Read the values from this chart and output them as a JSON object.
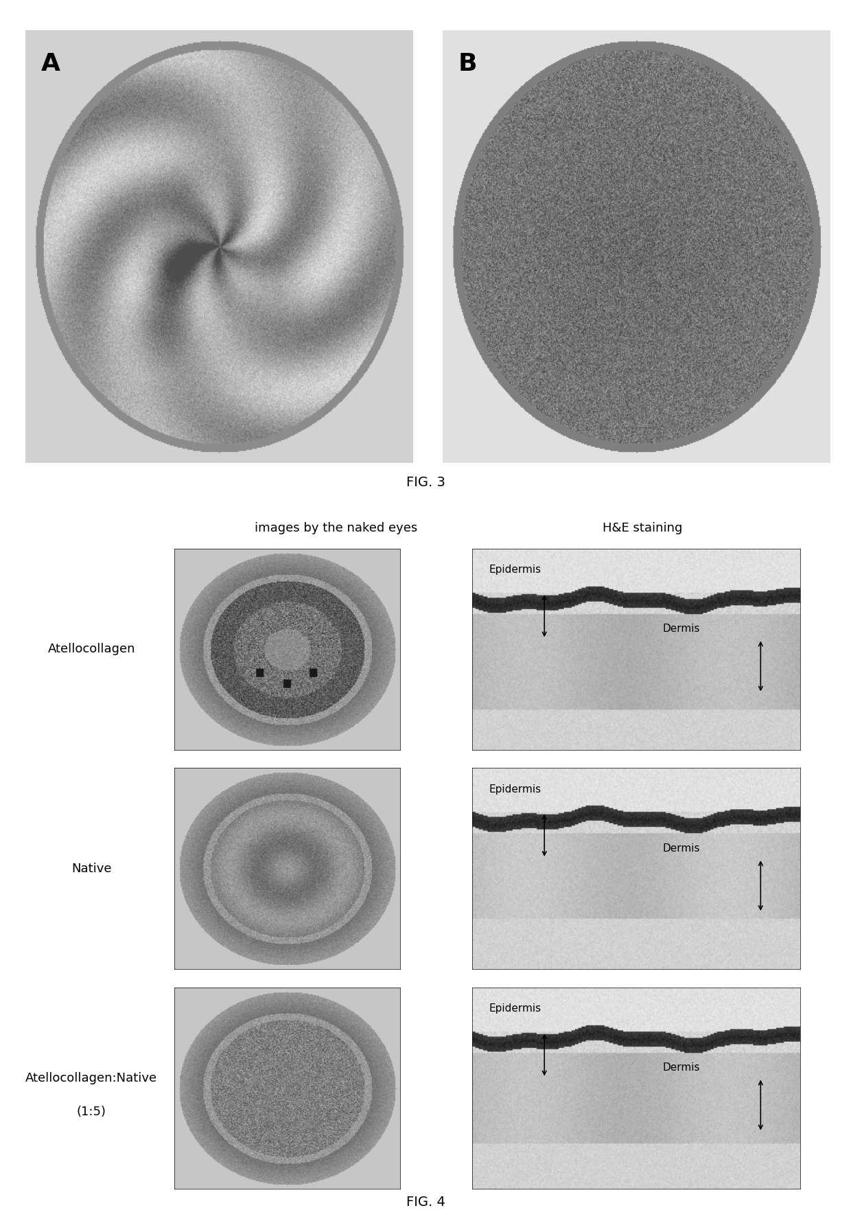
{
  "fig3_label": "FIG. 3",
  "fig4_label": "FIG. 4",
  "col1_header": "images by the naked eyes",
  "col2_header": "H&E staining",
  "row_labels": [
    "Atellocollagen",
    "Native",
    "Atellocollagen:Native\n(1:5)"
  ],
  "he_labels": [
    {
      "epidermis": "Epidermis",
      "dermis": "Dermis"
    },
    {
      "epidermis": "Epidermis",
      "dermis": "Dermis"
    },
    {
      "epidermis": "Epidermis",
      "dermis": "Dermis"
    }
  ],
  "bg_color": "#ffffff",
  "label_A": "A",
  "label_B": "B",
  "separator_color": "#111111",
  "fig3_label_fontsize": 14,
  "fig4_label_fontsize": 14,
  "header_fontsize": 13,
  "row_label_fontsize": 13,
  "he_text_fontsize": 11
}
